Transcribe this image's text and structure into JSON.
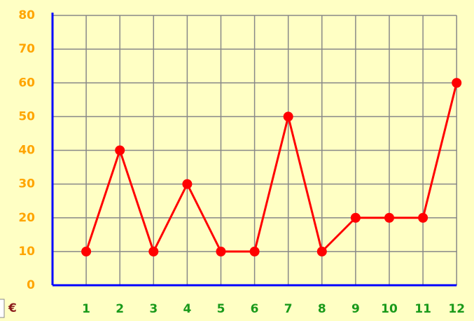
{
  "chart_data": {
    "type": "line",
    "categories": [
      "1",
      "2",
      "3",
      "4",
      "5",
      "6",
      "7",
      "8",
      "9",
      "10",
      "11",
      "12"
    ],
    "series": [
      {
        "name": null,
        "color": "#ff0000",
        "values": [
          10,
          40,
          10,
          30,
          10,
          10,
          50,
          10,
          20,
          20,
          20,
          60
        ]
      }
    ],
    "ylim": [
      0,
      80
    ],
    "yticks": [
      0,
      10,
      20,
      30,
      40,
      50,
      60,
      70,
      80
    ],
    "y_label": "€",
    "grid": true
  }
}
